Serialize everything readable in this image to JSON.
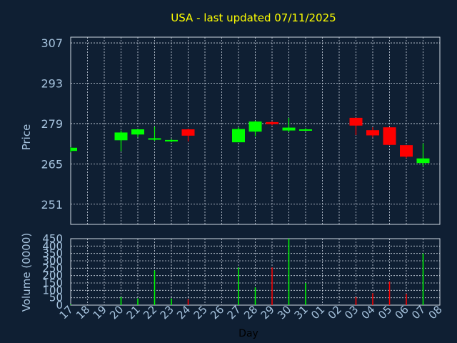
{
  "chart_data": [
    {
      "type": "candlestick",
      "title": "USA - last updated 07/11/2025",
      "ylabel": "Price",
      "ylim": [
        244,
        309
      ],
      "yticks": [
        251,
        265,
        279,
        293,
        307
      ],
      "grid": true,
      "colors": {
        "up": "#00ff00",
        "down": "#ff0000",
        "background": "#0f1f33",
        "grid": "#cfd8e3",
        "title": "#ffff00",
        "text": "#a7c4df"
      },
      "x": [
        "17",
        "18",
        "19",
        "20",
        "21",
        "22",
        "23",
        "24",
        "25",
        "26",
        "27",
        "28",
        "29",
        "30",
        "31",
        "01",
        "02",
        "03",
        "04",
        "05",
        "06",
        "07",
        "08"
      ],
      "candles": [
        {
          "x": "17",
          "open": 269.5,
          "high": 270.8,
          "low": 269.0,
          "close": 270.6
        },
        {
          "x": "20",
          "open": 273.2,
          "high": 276.6,
          "low": 269.4,
          "close": 275.9
        },
        {
          "x": "21",
          "open": 275.2,
          "high": 277.0,
          "low": 274.3,
          "close": 277.0
        },
        {
          "x": "22",
          "open": 273.4,
          "high": 277.9,
          "low": 273.0,
          "close": 273.9
        },
        {
          "x": "23",
          "open": 272.9,
          "high": 273.7,
          "low": 272.5,
          "close": 273.3
        },
        {
          "x": "24",
          "open": 277.0,
          "high": 277.2,
          "low": 272.8,
          "close": 274.8
        },
        {
          "x": "27",
          "open": 272.5,
          "high": 277.7,
          "low": 272.5,
          "close": 277.1
        },
        {
          "x": "28",
          "open": 276.2,
          "high": 280.0,
          "low": 274.6,
          "close": 279.7
        },
        {
          "x": "29",
          "open": 279.5,
          "high": 279.8,
          "low": 278.4,
          "close": 278.8
        },
        {
          "x": "30",
          "open": 276.6,
          "high": 281.0,
          "low": 276.0,
          "close": 277.6
        },
        {
          "x": "31",
          "open": 276.8,
          "high": 277.4,
          "low": 276.4,
          "close": 277.0
        },
        {
          "x": "03",
          "open": 281.0,
          "high": 281.0,
          "low": 275.0,
          "close": 278.3
        },
        {
          "x": "04",
          "open": 276.7,
          "high": 277.7,
          "low": 274.2,
          "close": 274.9
        },
        {
          "x": "05",
          "open": 277.7,
          "high": 277.8,
          "low": 271.5,
          "close": 271.6
        },
        {
          "x": "06",
          "open": 271.5,
          "high": 271.5,
          "low": 267.0,
          "close": 267.5
        },
        {
          "x": "07",
          "open": 265.3,
          "high": 272.1,
          "low": 264.1,
          "close": 266.9
        }
      ]
    },
    {
      "type": "bar",
      "ylabel": "Volume (0000)",
      "xlabel": "Day",
      "ylim": [
        0,
        450
      ],
      "yticks": [
        0,
        50,
        100,
        150,
        200,
        250,
        300,
        350,
        400,
        450
      ],
      "x": [
        "17",
        "18",
        "19",
        "20",
        "21",
        "22",
        "23",
        "24",
        "25",
        "26",
        "27",
        "28",
        "29",
        "30",
        "31",
        "01",
        "02",
        "03",
        "04",
        "05",
        "06",
        "07",
        "08"
      ],
      "bars": [
        {
          "x": "17",
          "value": 5,
          "dir": "up"
        },
        {
          "x": "20",
          "value": 55,
          "dir": "up"
        },
        {
          "x": "21",
          "value": 45,
          "dir": "up"
        },
        {
          "x": "22",
          "value": 235,
          "dir": "up"
        },
        {
          "x": "23",
          "value": 45,
          "dir": "up"
        },
        {
          "x": "24",
          "value": 40,
          "dir": "down"
        },
        {
          "x": "27",
          "value": 255,
          "dir": "up"
        },
        {
          "x": "28",
          "value": 120,
          "dir": "up"
        },
        {
          "x": "29",
          "value": 255,
          "dir": "down"
        },
        {
          "x": "30",
          "value": 450,
          "dir": "up"
        },
        {
          "x": "31",
          "value": 150,
          "dir": "up"
        },
        {
          "x": "03",
          "value": 55,
          "dir": "down"
        },
        {
          "x": "04",
          "value": 80,
          "dir": "down"
        },
        {
          "x": "05",
          "value": 160,
          "dir": "down"
        },
        {
          "x": "06",
          "value": 75,
          "dir": "down"
        },
        {
          "x": "07",
          "value": 350,
          "dir": "up"
        }
      ]
    }
  ]
}
